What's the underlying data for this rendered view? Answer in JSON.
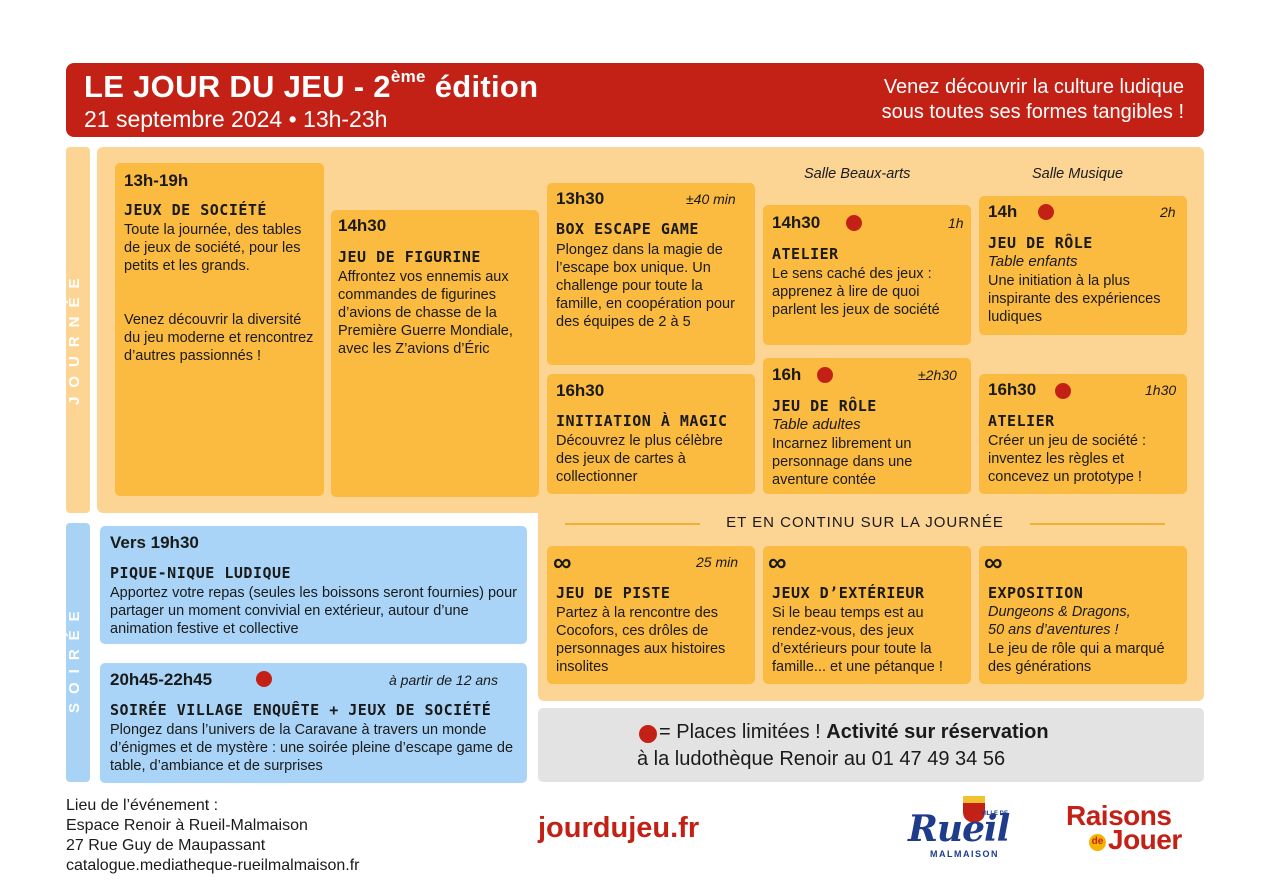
{
  "header": {
    "title_main": "LE JOUR DU JEU - 2",
    "title_sup": "ème",
    "title_end": " édition",
    "date": "21 septembre 2024 • 13h-23h",
    "tagline_1": "Venez découvrir la culture ludique",
    "tagline_2": "sous toutes ses formes tangibles !"
  },
  "sections": {
    "day": "Journée",
    "evening": "Soirée"
  },
  "rooms": {
    "beaux_arts": "Salle Beaux-arts",
    "musique": "Salle Musique"
  },
  "day_cards": [
    {
      "time": "13h-19h",
      "title": "Jeux de société",
      "text_1": "Toute la journée, des tables de jeux de société, pour les petits et les grands.",
      "text_2": "Venez découvrir la diversité du jeu moderne et rencontrez d’autres passionnés !"
    },
    {
      "time": "14h30",
      "title": "Jeu de figurine",
      "text": "Affrontez vos ennemis aux commandes de figurines d’avions de chasse de la Première Guerre Mondiale, avec les Z’avions d’Éric"
    },
    {
      "time": "13h30",
      "duration": "±40 min",
      "title": "Box escape game",
      "text": "Plongez dans la magie de l’escape box unique. Un challenge pour toute la famille, en coopération pour des équipes de 2 à 5"
    },
    {
      "time": "16h30",
      "title": "Initiation à Magic",
      "text": "Découvrez le plus célèbre des jeux de cartes à collectionner"
    },
    {
      "time": "14h30",
      "duration": "1h",
      "title": "Atelier",
      "text": "Le sens caché des jeux : apprenez à lire de quoi parlent les jeux de société"
    },
    {
      "time": "16h",
      "duration": "±2h30",
      "title": "Jeu de rôle",
      "subtitle": "Table adultes",
      "text": "Incarnez librement un personnage dans une aventure contée"
    },
    {
      "time": "14h",
      "duration": "2h",
      "title": "Jeu de rôle",
      "subtitle": "Table enfants",
      "text": "Une initiation à la plus inspirante des expériences ludiques"
    },
    {
      "time": "16h30",
      "duration": "1h30",
      "title": "Atelier",
      "text": "Créer un jeu de société : inventez les règles et concevez un prototype !"
    }
  ],
  "continuous": {
    "heading": "ET EN CONTINU SUR LA JOURNÉE",
    "symbol": "∞",
    "cards": [
      {
        "duration": "25 min",
        "title": "Jeu de piste",
        "text": "Partez à la rencontre des Cocofors, ces drôles de personnages aux histoires insolites"
      },
      {
        "title": "Jeux d’extérieur",
        "text": "Si le beau temps est au rendez-vous, des jeux d’extérieurs pour toute la famille... et une pétanque !"
      },
      {
        "title": "Exposition",
        "subtitle_1": "Dungeons & Dragons,",
        "subtitle_2": "50 ans d’aventures !",
        "text": "Le jeu de rôle qui a marqué des générations"
      }
    ]
  },
  "evening_cards": [
    {
      "time": "Vers 19h30",
      "title": "Pique-nique ludique",
      "text": "Apportez votre repas (seules les boissons seront fournies) pour partager un moment convivial en extérieur, autour d’une animation festive et collective"
    },
    {
      "time": "20h45-22h45",
      "age": "à partir de 12 ans",
      "title": "Soirée village enquête + jeux de société",
      "text": "Plongez dans l’univers de la Caravane à travers un monde d’énigmes et de mystère : une soirée pleine d’escape game de table, d’ambiance et de surprises"
    }
  ],
  "info": {
    "prefix": "= Places limitées ! ",
    "bold": "Activité sur réservation",
    "line_2": "à la ludothèque Renoir au 01 47 49 34 56"
  },
  "footer": {
    "addr_1": "Lieu de l’événement :",
    "addr_2": "Espace Renoir à Rueil-Malmaison",
    "addr_3": "27 Rue Guy de Maupassant",
    "addr_4": "catalogue.mediatheque-rueilmalmaison.fr",
    "website": "jourdujeu.fr",
    "logo_rueil_small": "VILLE DE",
    "logo_rueil": "Rueil",
    "logo_rueil_sub": "MALMAISON",
    "logo_raisons_1": "Raisons",
    "logo_raisons_de": "de",
    "logo_raisons_2": "Jouer"
  },
  "colors": {
    "red": "#c42116",
    "orange": "#fbbb40",
    "light_orange": "#fcd595",
    "blue": "#a9d4f7",
    "grey": "#e3e3e3",
    "rueil_blue": "#1f3b8c"
  }
}
